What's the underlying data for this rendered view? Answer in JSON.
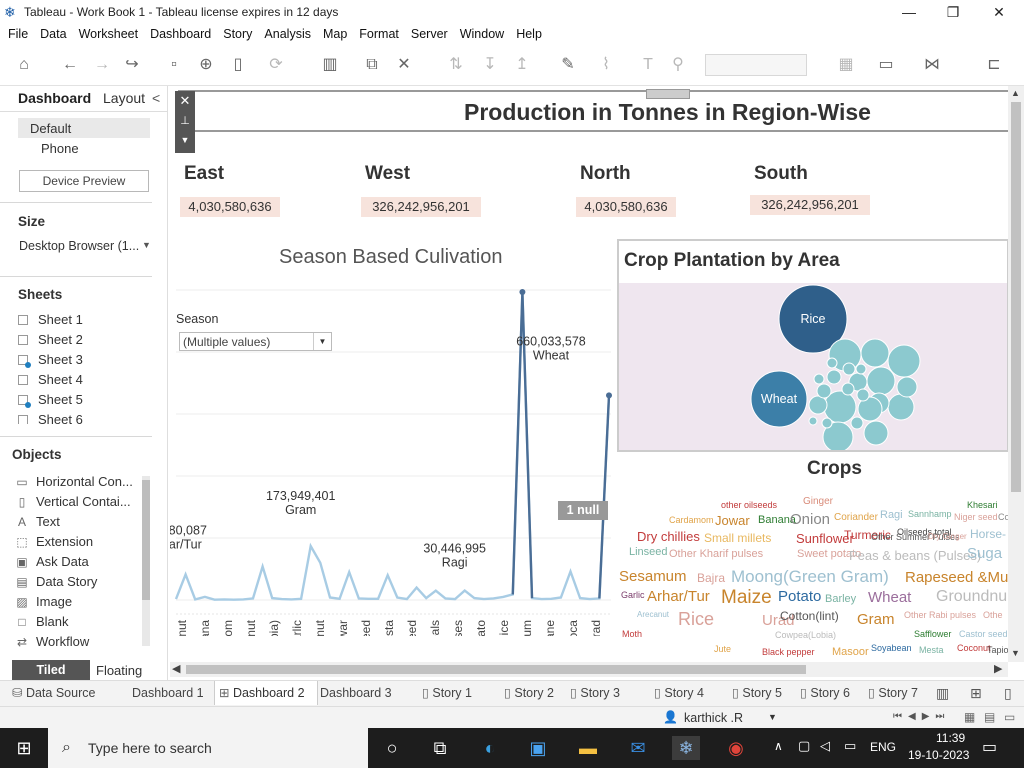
{
  "window": {
    "title": "Tableau - Work Book 1 - Tableau license expires in 12 days",
    "minimize": "—",
    "restore": "❐",
    "close": "✕"
  },
  "menu": [
    "File",
    "Data",
    "Worksheet",
    "Dashboard",
    "Story",
    "Analysis",
    "Map",
    "Format",
    "Server",
    "Window",
    "Help"
  ],
  "sidebar": {
    "tab_dashboard": "Dashboard",
    "tab_layout": "Layout",
    "collapse": "<",
    "device_default": "Default",
    "device_phone": "Phone",
    "device_preview": "Device Preview",
    "size_title": "Size",
    "size_value": "Desktop Browser (1...",
    "sheets_title": "Sheets",
    "sheets": [
      "Sheet 1",
      "Sheet 2",
      "Sheet 3",
      "Sheet 4",
      "Sheet 5",
      "Sheet 6"
    ],
    "objects_title": "Objects",
    "objects": [
      {
        "label": "Horizontal Con...",
        "icon": "horizontal-container-icon",
        "glyph": "▭"
      },
      {
        "label": "Vertical Contai...",
        "icon": "vertical-container-icon",
        "glyph": "▯"
      },
      {
        "label": "Text",
        "icon": "text-icon",
        "glyph": "A"
      },
      {
        "label": "Extension",
        "icon": "extension-icon",
        "glyph": "⬚"
      },
      {
        "label": "Ask Data",
        "icon": "ask-data-icon",
        "glyph": "▣"
      },
      {
        "label": "Data Story",
        "icon": "data-story-icon",
        "glyph": "▤"
      },
      {
        "label": "Image",
        "icon": "image-icon",
        "glyph": "▨"
      },
      {
        "label": "Blank",
        "icon": "blank-icon",
        "glyph": "□"
      },
      {
        "label": "Workflow",
        "icon": "workflow-icon",
        "glyph": "⇄"
      }
    ],
    "tiled": "Tiled",
    "floating": "Floating"
  },
  "dashboard": {
    "title": "Production in Tonnes in Region-Wise",
    "regions": [
      {
        "name": "East",
        "value": "4,030,580,636"
      },
      {
        "name": "West",
        "value": "326,242,956,201"
      },
      {
        "name": "North",
        "value": "4,030,580,636"
      },
      {
        "name": "South",
        "value": "326,242,956,201"
      }
    ],
    "season_chart_title": "Season Based Culivation",
    "season_filter_label": "Season",
    "season_filter_value": "(Multiple values)",
    "null_badge": "1 null",
    "bubble_title": "Crop Plantation by Area",
    "bubble_labels": [
      "Rice",
      "Wheat"
    ],
    "cloud_title": "Crops"
  },
  "chart_data": [
    {
      "type": "line",
      "title": "Season Based Culivation",
      "categories": [
        "Arecanut",
        "Banana",
        "Cardamom",
        "Coconut",
        "Cowpea(Lobia)",
        "Garlic",
        "Groundnut",
        "Jowar",
        "Linseed",
        "Mesta",
        "Niger seed",
        "Other Cereals",
        "Other Rabi pulses",
        "Potato",
        "Rice",
        "Sesamum",
        "Sugarcane",
        "Tapioca",
        "Urad"
      ],
      "points": [
        {
          "x": "",
          "y": 3000000
        },
        {
          "x": "",
          "y": 82280087
        },
        {
          "x": "",
          "y": 2000000
        },
        {
          "x": "",
          "y": 10000000
        },
        {
          "x": "",
          "y": 1000000
        },
        {
          "x": "",
          "y": 2000000
        },
        {
          "x": "",
          "y": 1000000
        },
        {
          "x": "",
          "y": 2000000
        },
        {
          "x": "",
          "y": 5000000
        },
        {
          "x": "",
          "y": 108000000
        },
        {
          "x": "",
          "y": 6000000
        },
        {
          "x": "",
          "y": 3000000
        },
        {
          "x": "",
          "y": 2000000
        },
        {
          "x": "",
          "y": 4000000
        },
        {
          "x": "",
          "y": 173949401
        },
        {
          "x": "",
          "y": 120000000
        },
        {
          "x": "",
          "y": 8000000
        },
        {
          "x": "",
          "y": 4000000
        },
        {
          "x": "",
          "y": 90000000
        },
        {
          "x": "",
          "y": 5000000
        },
        {
          "x": "",
          "y": 4000000
        },
        {
          "x": "",
          "y": 4000000
        },
        {
          "x": "",
          "y": 80000000
        },
        {
          "x": "",
          "y": 8000000
        },
        {
          "x": "",
          "y": 3000000
        },
        {
          "x": "",
          "y": 40000000
        },
        {
          "x": "",
          "y": 6000000
        },
        {
          "x": "",
          "y": 30000000
        },
        {
          "x": "",
          "y": 5000000
        },
        {
          "x": "",
          "y": 3000000
        },
        {
          "x": "",
          "y": 30446995
        },
        {
          "x": "",
          "y": 6000000
        },
        {
          "x": "",
          "y": 3000000
        },
        {
          "x": "",
          "y": 5000000
        },
        {
          "x": "",
          "y": 10000000
        },
        {
          "x": "",
          "y": 18000000
        },
        {
          "x": "",
          "y": 993423397
        },
        {
          "x": "",
          "y": 6000000
        },
        {
          "x": "",
          "y": 3000000
        },
        {
          "x": "",
          "y": 4000000
        },
        {
          "x": "",
          "y": 8000000
        },
        {
          "x": "",
          "y": 92000000
        },
        {
          "x": "",
          "y": 6000000
        },
        {
          "x": "",
          "y": 3000000
        },
        {
          "x": "",
          "y": 5000000
        },
        {
          "x": "",
          "y": 660033578
        }
      ],
      "labels": [
        {
          "value": "82,280,087",
          "name": "Arhar/Tur"
        },
        {
          "value": "173,949,401",
          "name": "Gram"
        },
        {
          "value": "30,446,995",
          "name": "Ragi"
        },
        {
          "value": "993,423,397",
          "name": "Rice"
        },
        {
          "value": "660,033,578",
          "name": "Wheat"
        }
      ],
      "ylim": [
        0,
        1000000000
      ],
      "grid": true
    },
    {
      "type": "bubble",
      "title": "Crop Plantation by Area",
      "bubbles": [
        {
          "name": "Rice",
          "size": 1.0
        },
        {
          "name": "Wheat",
          "size": 0.7
        }
      ]
    }
  ],
  "wordcloud": [
    {
      "t": "other oilseeds",
      "c": "#c23b3b"
    },
    {
      "t": "Ginger",
      "c": "#d98c7a"
    },
    {
      "t": "Khesari",
      "c": "#2e7d32"
    },
    {
      "t": "Cardamom",
      "c": "#e0a44a"
    },
    {
      "t": "Jowar",
      "c": "#c8842c"
    },
    {
      "t": "Banana",
      "c": "#2e7d32"
    },
    {
      "t": "Onion",
      "c": "#888"
    },
    {
      "t": "Coriander",
      "c": "#e0a44a"
    },
    {
      "t": "Ragi",
      "c": "#9ec0d0"
    },
    {
      "t": "Sannhamp",
      "c": "#7ab3a3"
    },
    {
      "t": "Niger seed",
      "c": "#d9a199"
    },
    {
      "t": "Coffee",
      "c": "#888"
    },
    {
      "t": "Dry chillies",
      "c": "#c23b3b"
    },
    {
      "t": "Small millets",
      "c": "#e8b860"
    },
    {
      "t": "Sunflower",
      "c": "#c23b3b"
    },
    {
      "t": "Turmeric",
      "c": "#c23b3b"
    },
    {
      "t": "Oilseeds total",
      "c": "#444"
    },
    {
      "t": "Horse-",
      "c": "#9ec0d0"
    },
    {
      "t": "Linseed",
      "c": "#7ab3a3"
    },
    {
      "t": "Other Kharif pulses",
      "c": "#d9a199"
    },
    {
      "t": "Sweet potato",
      "c": "#d9a199"
    },
    {
      "t": "Peas & beans (Pulses)",
      "c": "#bbb"
    },
    {
      "t": "Suga",
      "c": "#9ec0d0"
    },
    {
      "t": "Other Summer Pulses",
      "c": "#555"
    },
    {
      "t": "Dry Ginger",
      "c": "#d9a199"
    },
    {
      "t": "Sesamum",
      "c": "#c8842c"
    },
    {
      "t": "Bajra",
      "c": "#d9a199"
    },
    {
      "t": "Moong(Green Gram)",
      "c": "#9ec0d0"
    },
    {
      "t": "Rapeseed &Mu",
      "c": "#c8842c"
    },
    {
      "t": "Garlic",
      "c": "#7a3b6a"
    },
    {
      "t": "Arhar/Tur",
      "c": "#c8842c"
    },
    {
      "t": "Maize",
      "c": "#c8842c"
    },
    {
      "t": "Potato",
      "c": "#2d6aa0"
    },
    {
      "t": "Barley",
      "c": "#7ab3a3"
    },
    {
      "t": "Wheat",
      "c": "#9b6e9c"
    },
    {
      "t": "Groundnu",
      "c": "#bbb"
    },
    {
      "t": "Arecanut",
      "c": "#9ec0d0"
    },
    {
      "t": "Rice",
      "c": "#d9a199"
    },
    {
      "t": "Urad",
      "c": "#d9a199"
    },
    {
      "t": "Cotton(lint)",
      "c": "#555"
    },
    {
      "t": "Gram",
      "c": "#c8842c"
    },
    {
      "t": "Other Rabi pulses",
      "c": "#d9a199"
    },
    {
      "t": "Othe",
      "c": "#d9a199"
    },
    {
      "t": "Moth",
      "c": "#c23b3b"
    },
    {
      "t": "Cowpea(Lobia)",
      "c": "#bbb"
    },
    {
      "t": "Safflower",
      "c": "#2e7d32"
    },
    {
      "t": "Castor seed",
      "c": "#9ec0d0"
    },
    {
      "t": "Jute",
      "c": "#e0a44a"
    },
    {
      "t": "Black pepper",
      "c": "#c23b3b"
    },
    {
      "t": "Masoor",
      "c": "#e0a44a"
    },
    {
      "t": "Soyabean",
      "c": "#2d6aa0"
    },
    {
      "t": "Mesta",
      "c": "#7ab3a3"
    },
    {
      "t": "Coconut",
      "c": "#c23b3b"
    },
    {
      "t": "Tapio",
      "c": "#555"
    }
  ],
  "sheet_tabs": [
    "Data Source",
    "Dashboard 1",
    "Dashboard 2",
    "Dashboard 3",
    "Story 1",
    "Story 2",
    "Story 3",
    "Story 4",
    "Story 5",
    "Story 6",
    "Story 7"
  ],
  "active_tab": "Dashboard 2",
  "user": "karthick .R",
  "taskbar": {
    "search_placeholder": "Type here to search",
    "lang": "ENG",
    "time": "11:39",
    "date": "19-10-2023"
  },
  "colors": {
    "accent": "#1f5fa8",
    "line": "#a8cce4",
    "peak": "#4a6d95",
    "bubble_bg": "#efe6ef",
    "bubble": "#8cc9cf",
    "bubble_dark": "#2f5f8a",
    "bubble_mid": "#3c7fa8",
    "kpi_bg": "#f7e3dc"
  }
}
